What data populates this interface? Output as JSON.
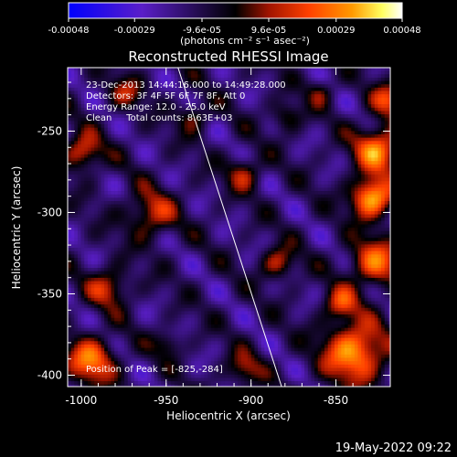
{
  "colorbar": {
    "tick_labels": [
      "-0.00048",
      "-0.00029",
      "-9.6e-05",
      "9.6e-05",
      "0.00029",
      "0.00048"
    ],
    "tick_values": [
      -0.00048,
      -0.00029,
      -9.6e-05,
      9.6e-05,
      0.00029,
      0.00048
    ],
    "range": [
      -0.00048,
      0.00048
    ],
    "units_label": "(photons cm⁻² s⁻¹ asec⁻²)",
    "colors": [
      "#0000ff",
      "#5a1ec8",
      "#000000",
      "#a01400",
      "#ff4000",
      "#ff9a00",
      "#ffff60",
      "#ffffff"
    ]
  },
  "chart_data": {
    "type": "heatmap",
    "title": "Reconstructed RHESSI Image",
    "annotations": {
      "line1": "23-Dec-2013 14:44:16.000 to 14:49:28.000",
      "line2": "Detectors: 3F 4F 5F 6F 7F 8F, Att 0",
      "line3": "Energy Range: 12.0 - 25.0 keV",
      "line4": "Clean     Total counts: 8.63E+03",
      "peak": "Position of Peak = [-825,-284]"
    },
    "xlabel": "Heliocentric X (arcsec)",
    "ylabel": "Heliocentric Y (arcsec)",
    "xlim": [
      -1008,
      -818
    ],
    "ylim": [
      -407,
      -211
    ],
    "x_ticks": [
      -1000,
      -950,
      -900,
      -850
    ],
    "x_tick_labels": [
      "-1000",
      "-950",
      "-900",
      "-850"
    ],
    "y_ticks": [
      -400,
      -350,
      -300,
      -250
    ],
    "y_tick_labels": [
      "-400",
      "-350",
      "-300",
      "-250"
    ],
    "limb_line": [
      [
        -943,
        -211
      ],
      [
        -882,
        -407
      ]
    ],
    "peak_position": [
      -825,
      -284
    ],
    "grid": false,
    "colormap_range": [
      -0.00048,
      0.00048
    ]
  },
  "footer": {
    "timestamp": "19-May-2022 09:22"
  }
}
